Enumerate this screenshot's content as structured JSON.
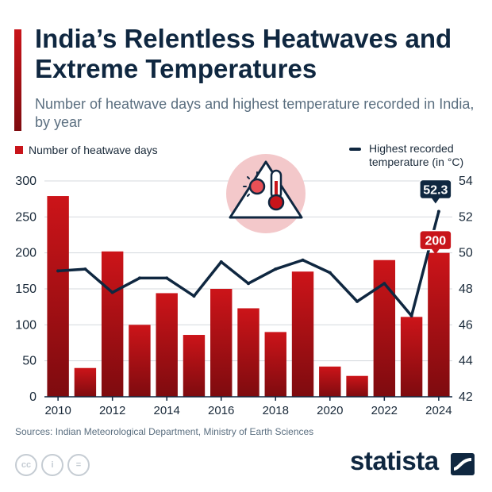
{
  "colors": {
    "bar": "#c8141a",
    "bar_dark": "#7e0b0f",
    "line": "#0f2740",
    "accent": "#c8141a",
    "grid": "#d4d9de"
  },
  "header": {
    "title": "India’s Relentless Heatwaves and Extreme Temperatures",
    "subtitle": "Number of heatwave days and highest temperature recorded in India, by year"
  },
  "legend": {
    "bars": "Number of heatwave days",
    "line": "Highest recorded temperature (in °C)"
  },
  "icon": "thermometer-warning-icon",
  "chart_data": {
    "type": "bar",
    "categories": [
      2010,
      2011,
      2012,
      2013,
      2014,
      2015,
      2016,
      2017,
      2018,
      2019,
      2020,
      2021,
      2022,
      2023,
      2024
    ],
    "x_tick_labels": [
      "2010",
      "2012",
      "2014",
      "2016",
      "2018",
      "2020",
      "2022",
      "2024"
    ],
    "series": [
      {
        "name": "Number of heatwave days",
        "type": "bar",
        "axis": "left",
        "values": [
          279,
          40,
          202,
          100,
          144,
          86,
          150,
          123,
          90,
          174,
          42,
          29,
          190,
          111,
          200
        ]
      },
      {
        "name": "Highest recorded temperature (in °C)",
        "type": "line",
        "axis": "right",
        "values": [
          49.0,
          49.1,
          47.8,
          48.6,
          48.6,
          47.6,
          49.5,
          48.3,
          49.1,
          49.6,
          48.9,
          47.3,
          48.3,
          46.5,
          52.3
        ]
      }
    ],
    "y_left": {
      "lim": [
        0,
        300
      ],
      "ticks": [
        0,
        50,
        100,
        150,
        200,
        250,
        300
      ]
    },
    "y_right": {
      "lim": [
        42,
        54
      ],
      "ticks": [
        42,
        44,
        46,
        48,
        50,
        52,
        54
      ]
    },
    "annotations": [
      {
        "label": "52.3",
        "series": "Highest recorded temperature (in °C)",
        "category": 2024
      },
      {
        "label": "200",
        "series": "Number of heatwave days",
        "category": 2024
      }
    ],
    "grid": true,
    "legend_position": "top"
  },
  "footer": {
    "source": "Sources: Indian Meteorological Department, Ministry of Earth Sciences",
    "brand": "statista",
    "license_icons": [
      "cc",
      "i",
      "="
    ]
  }
}
